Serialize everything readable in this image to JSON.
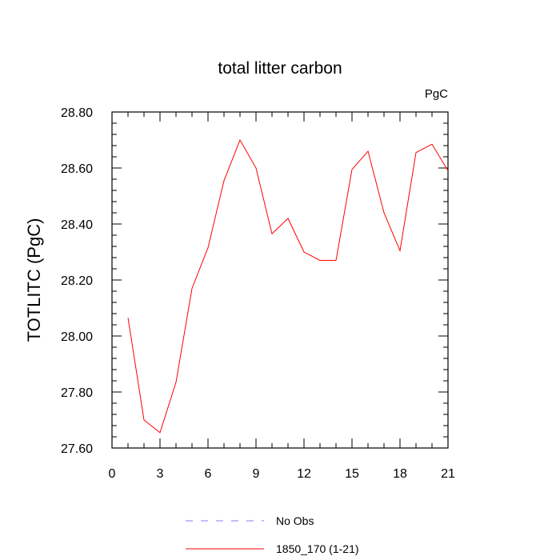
{
  "chart_data": {
    "type": "line",
    "title": "total litter carbon",
    "units_label": "PgC",
    "ylabel": "TOTLITC  (PgC)",
    "xlabel": "",
    "xlim": [
      0,
      21
    ],
    "ylim": [
      27.6,
      28.8
    ],
    "xticks": [
      0,
      3,
      6,
      9,
      12,
      15,
      18,
      21
    ],
    "xtick_labels": [
      "0",
      "3",
      "6",
      "9",
      "12",
      "15",
      "18",
      "21"
    ],
    "yticks": [
      27.6,
      27.8,
      28.0,
      28.2,
      28.4,
      28.6,
      28.8
    ],
    "ytick_labels": [
      "27.60",
      "27.80",
      "28.00",
      "28.20",
      "28.40",
      "28.60",
      "28.80"
    ],
    "grid": false,
    "legend_position": "bottom-center",
    "series": [
      {
        "name": "1850_170 (1-21)",
        "color": "#ff0000",
        "style": "solid",
        "x": [
          1,
          2,
          3,
          4,
          5,
          6,
          7,
          8,
          9,
          10,
          11,
          12,
          13,
          14,
          15,
          16,
          17,
          18,
          19,
          20,
          21
        ],
        "y": [
          28.065,
          27.7,
          27.655,
          27.835,
          28.17,
          28.315,
          28.555,
          28.7,
          28.6,
          28.365,
          28.42,
          28.3,
          28.27,
          28.27,
          28.595,
          28.66,
          28.44,
          28.305,
          28.655,
          28.685,
          28.59
        ]
      }
    ],
    "legend": [
      {
        "label": "No Obs",
        "color": "#8080ff",
        "style": "dashed"
      },
      {
        "label": "1850_170 (1-21)",
        "color": "#ff0000",
        "style": "solid"
      }
    ]
  }
}
